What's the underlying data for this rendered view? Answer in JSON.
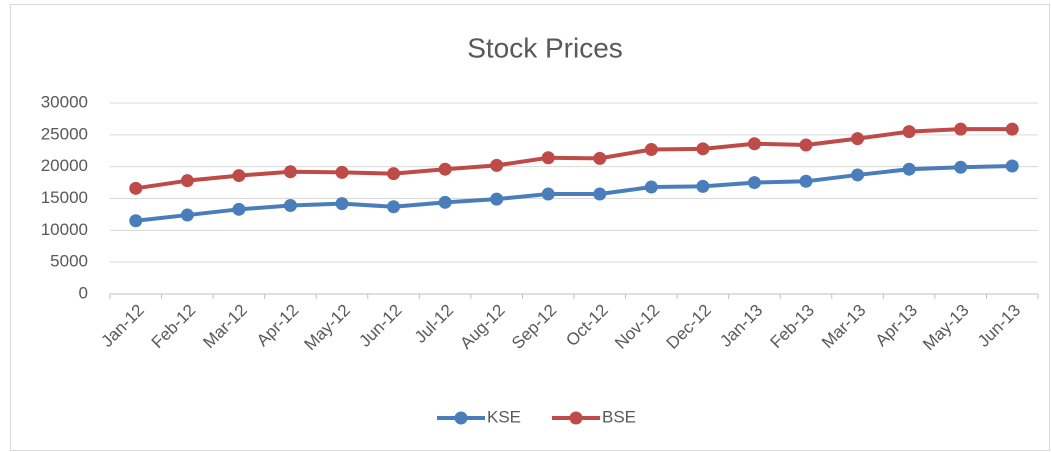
{
  "chart_data": {
    "type": "line",
    "title": "Stock Prices",
    "categories": [
      "Jan-12",
      "Feb-12",
      "Mar-12",
      "Apr-12",
      "May-12",
      "Jun-12",
      "Jul-12",
      "Aug-12",
      "Sep-12",
      "Oct-12",
      "Nov-12",
      "Dec-12",
      "Jan-13",
      "Feb-13",
      "Mar-13",
      "Apr-13",
      "May-13",
      "Jun-13"
    ],
    "series": [
      {
        "name": "KSE",
        "color": "#4a7ebb",
        "values": [
          11500,
          12400,
          13300,
          13900,
          14200,
          13700,
          14400,
          14900,
          15700,
          15700,
          16800,
          16900,
          17500,
          17700,
          18700,
          19600,
          19900,
          20100
        ]
      },
      {
        "name": "BSE",
        "color": "#be4b48",
        "values": [
          16600,
          17800,
          18600,
          19200,
          19100,
          18900,
          19600,
          20200,
          21400,
          21300,
          22700,
          22800,
          23600,
          23400,
          24400,
          25500,
          25900,
          25900
        ]
      }
    ],
    "ylim": [
      0,
      30000
    ],
    "yticks": [
      0,
      5000,
      10000,
      15000,
      20000,
      25000,
      30000
    ],
    "grid": true,
    "legend": "bottom"
  }
}
